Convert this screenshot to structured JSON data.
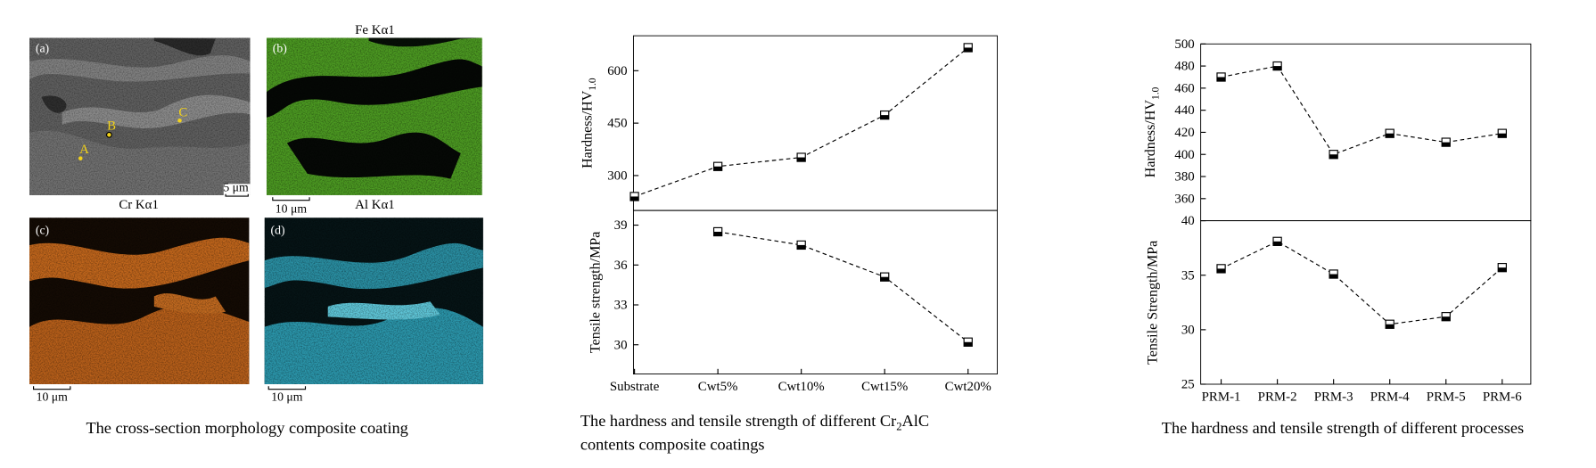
{
  "figure_a": {
    "panel_labels": [
      "(a)",
      "(b)",
      "(c)",
      "(d)"
    ],
    "map_titles": [
      "Fe Kα1",
      "Cr Kα1",
      "Al Kα1"
    ],
    "point_labels": [
      "A",
      "B",
      "C"
    ],
    "scale_bars": [
      "5 μm",
      "10 μm",
      "10 μm",
      "10 μm"
    ],
    "caption": "The cross-section morphology composite coating"
  },
  "figure_b": {
    "caption_line1": [
      "The hardness and tensile strength of different Cr",
      "2",
      "AlC"
    ],
    "caption_line2": "contents composite coatings"
  },
  "figure_c": {
    "caption": "The hardness and tensile strength of different processes"
  },
  "chart_data": [
    {
      "type": "line",
      "ylabel": [
        "Hardness/HV",
        "1.0"
      ],
      "values": [
        240,
        326,
        352,
        473,
        666
      ],
      "ylim": [
        200,
        700
      ],
      "yticks": [
        300,
        450,
        600
      ],
      "color": "#000000",
      "line_style": "dashed"
    },
    {
      "type": "line",
      "ylabel": [
        "Tensile strength/MPa"
      ],
      "categories": [
        "Substrate",
        "Cwt5%",
        "Cwt10%",
        "Cwt15%",
        "Cwt20%"
      ],
      "values": [
        null,
        38.5,
        37.5,
        35.1,
        30.2
      ],
      "ylim": [
        27.8,
        40.1
      ],
      "yticks": [
        30,
        33,
        36,
        39
      ],
      "color": "#000000",
      "line_style": "dashed"
    },
    {
      "type": "line",
      "ylabel": [
        "Hardness/HV",
        "1.0"
      ],
      "values": [
        470,
        480,
        400,
        419,
        411,
        419
      ],
      "ylim": [
        340,
        500
      ],
      "yticks": [
        360,
        380,
        400,
        420,
        440,
        460,
        480,
        500
      ],
      "color": "#000000",
      "line_style": "dashed"
    },
    {
      "type": "line",
      "ylabel": [
        "Tensile Strength/MPa"
      ],
      "categories": [
        "PRM-1",
        "PRM-2",
        "PRM-3",
        "PRM-4",
        "PRM-5",
        "PRM-6"
      ],
      "values": [
        35.6,
        38.1,
        35.1,
        30.5,
        31.2,
        35.7
      ],
      "ylim": [
        25,
        40
      ],
      "yticks": [
        25,
        30,
        35,
        40
      ],
      "color": "#000000",
      "line_style": "dashed"
    }
  ]
}
